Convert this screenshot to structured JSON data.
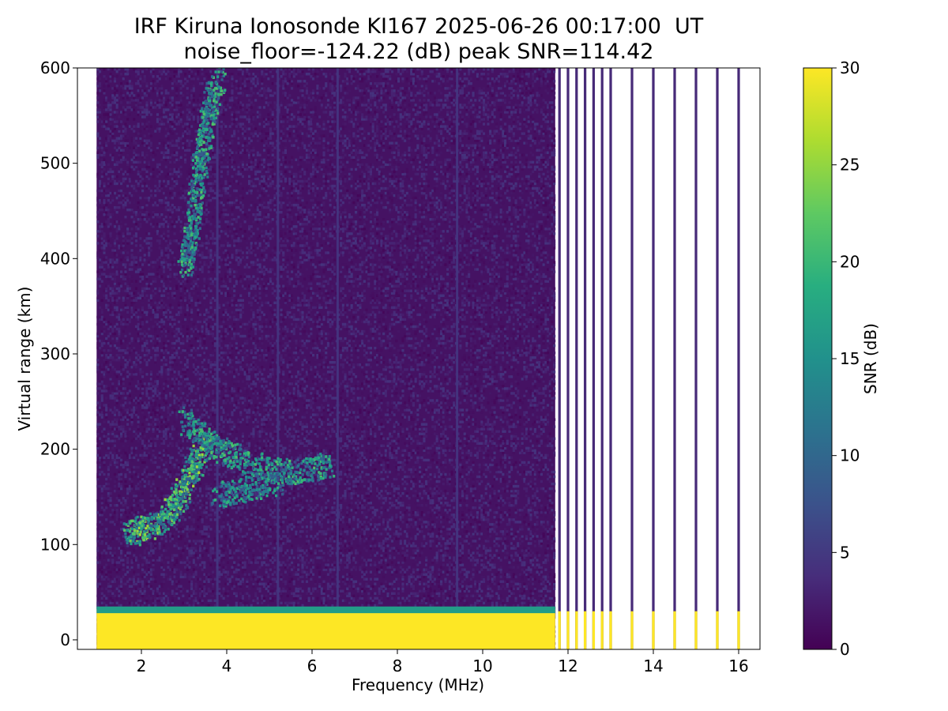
{
  "chart_data": {
    "type": "heatmap",
    "title": "IRF Kiruna Ionosonde KI167 2025-06-26 00:17:00  UT",
    "subtitle": "noise_floor=-124.22 (dB) peak SNR=114.42",
    "xlabel": "Frequency (MHz)",
    "ylabel": "Virtual range (km)",
    "xlim": [
      0.5,
      16.5
    ],
    "ylim": [
      -10,
      600
    ],
    "x_ticks": [
      2,
      4,
      6,
      8,
      10,
      12,
      14,
      16
    ],
    "y_ticks": [
      0,
      100,
      200,
      300,
      400,
      500,
      600
    ],
    "colorbar": {
      "label": "SNR (dB)",
      "range": [
        0,
        30
      ],
      "ticks": [
        0,
        5,
        10,
        15,
        20,
        25,
        30
      ],
      "colormap": "viridis"
    },
    "data_extent": {
      "freq_start_mhz": 0.95,
      "freq_end_mhz": 16.2,
      "contiguous_sweep_end_mhz": 11.7
    },
    "discrete_frequencies_mhz": [
      11.8,
      12.0,
      12.2,
      12.4,
      12.6,
      12.8,
      13.0,
      13.5,
      14.0,
      14.5,
      15.0,
      15.5,
      16.0
    ],
    "echo_traces": [
      {
        "name": "E/F1 trace",
        "points": [
          [
            1.7,
            110
          ],
          [
            2.0,
            115
          ],
          [
            2.4,
            122
          ],
          [
            2.7,
            135
          ],
          [
            2.9,
            150
          ],
          [
            3.1,
            170
          ],
          [
            3.3,
            190
          ],
          [
            3.5,
            205
          ]
        ],
        "snr_db": 24
      },
      {
        "name": "F2 trace",
        "points": [
          [
            3.0,
            230
          ],
          [
            3.4,
            210
          ],
          [
            3.8,
            200
          ],
          [
            4.2,
            190
          ],
          [
            4.8,
            180
          ],
          [
            5.4,
            175
          ],
          [
            6.0,
            178
          ],
          [
            6.4,
            182
          ]
        ],
        "snr_db": 20
      },
      {
        "name": "lower F2 branch",
        "points": [
          [
            3.8,
            150
          ],
          [
            4.2,
            155
          ],
          [
            4.8,
            160
          ],
          [
            5.3,
            165
          ]
        ],
        "snr_db": 18
      },
      {
        "name": "multi-hop echo",
        "points": [
          [
            3.0,
            390
          ],
          [
            3.1,
            410
          ],
          [
            3.2,
            440
          ],
          [
            3.3,
            480
          ],
          [
            3.4,
            510
          ],
          [
            3.5,
            540
          ],
          [
            3.6,
            560
          ],
          [
            3.8,
            590
          ]
        ],
        "snr_db": 20
      },
      {
        "name": "ground band",
        "points": [
          [
            0.95,
            15
          ],
          [
            11.7,
            15
          ]
        ],
        "snr_db": 30
      }
    ],
    "vertical_interference_lines_mhz": [
      3.78,
      5.2,
      6.6,
      9.4
    ]
  }
}
